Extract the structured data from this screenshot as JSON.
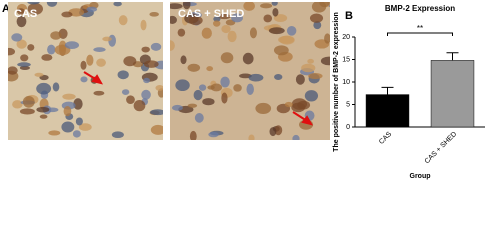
{
  "panel_a": {
    "label": "A",
    "images": [
      {
        "label": "CAS"
      },
      {
        "label": "CAS + SHED"
      }
    ]
  },
  "chart_data": {
    "type": "bar",
    "panel_label": "B",
    "title": "BMP-2 Expression",
    "y_label": "The positive number of BMP-2 expression",
    "x_label": "Group",
    "categories": [
      "CAS",
      "CAS + SHED"
    ],
    "values": [
      7.2,
      14.8
    ],
    "errors": [
      1.6,
      1.7
    ],
    "colors": [
      "#000000",
      "#9a9a9a"
    ],
    "significance": "**",
    "ylim": [
      0,
      20
    ],
    "yticks": [
      0,
      5,
      10,
      15,
      20
    ]
  }
}
